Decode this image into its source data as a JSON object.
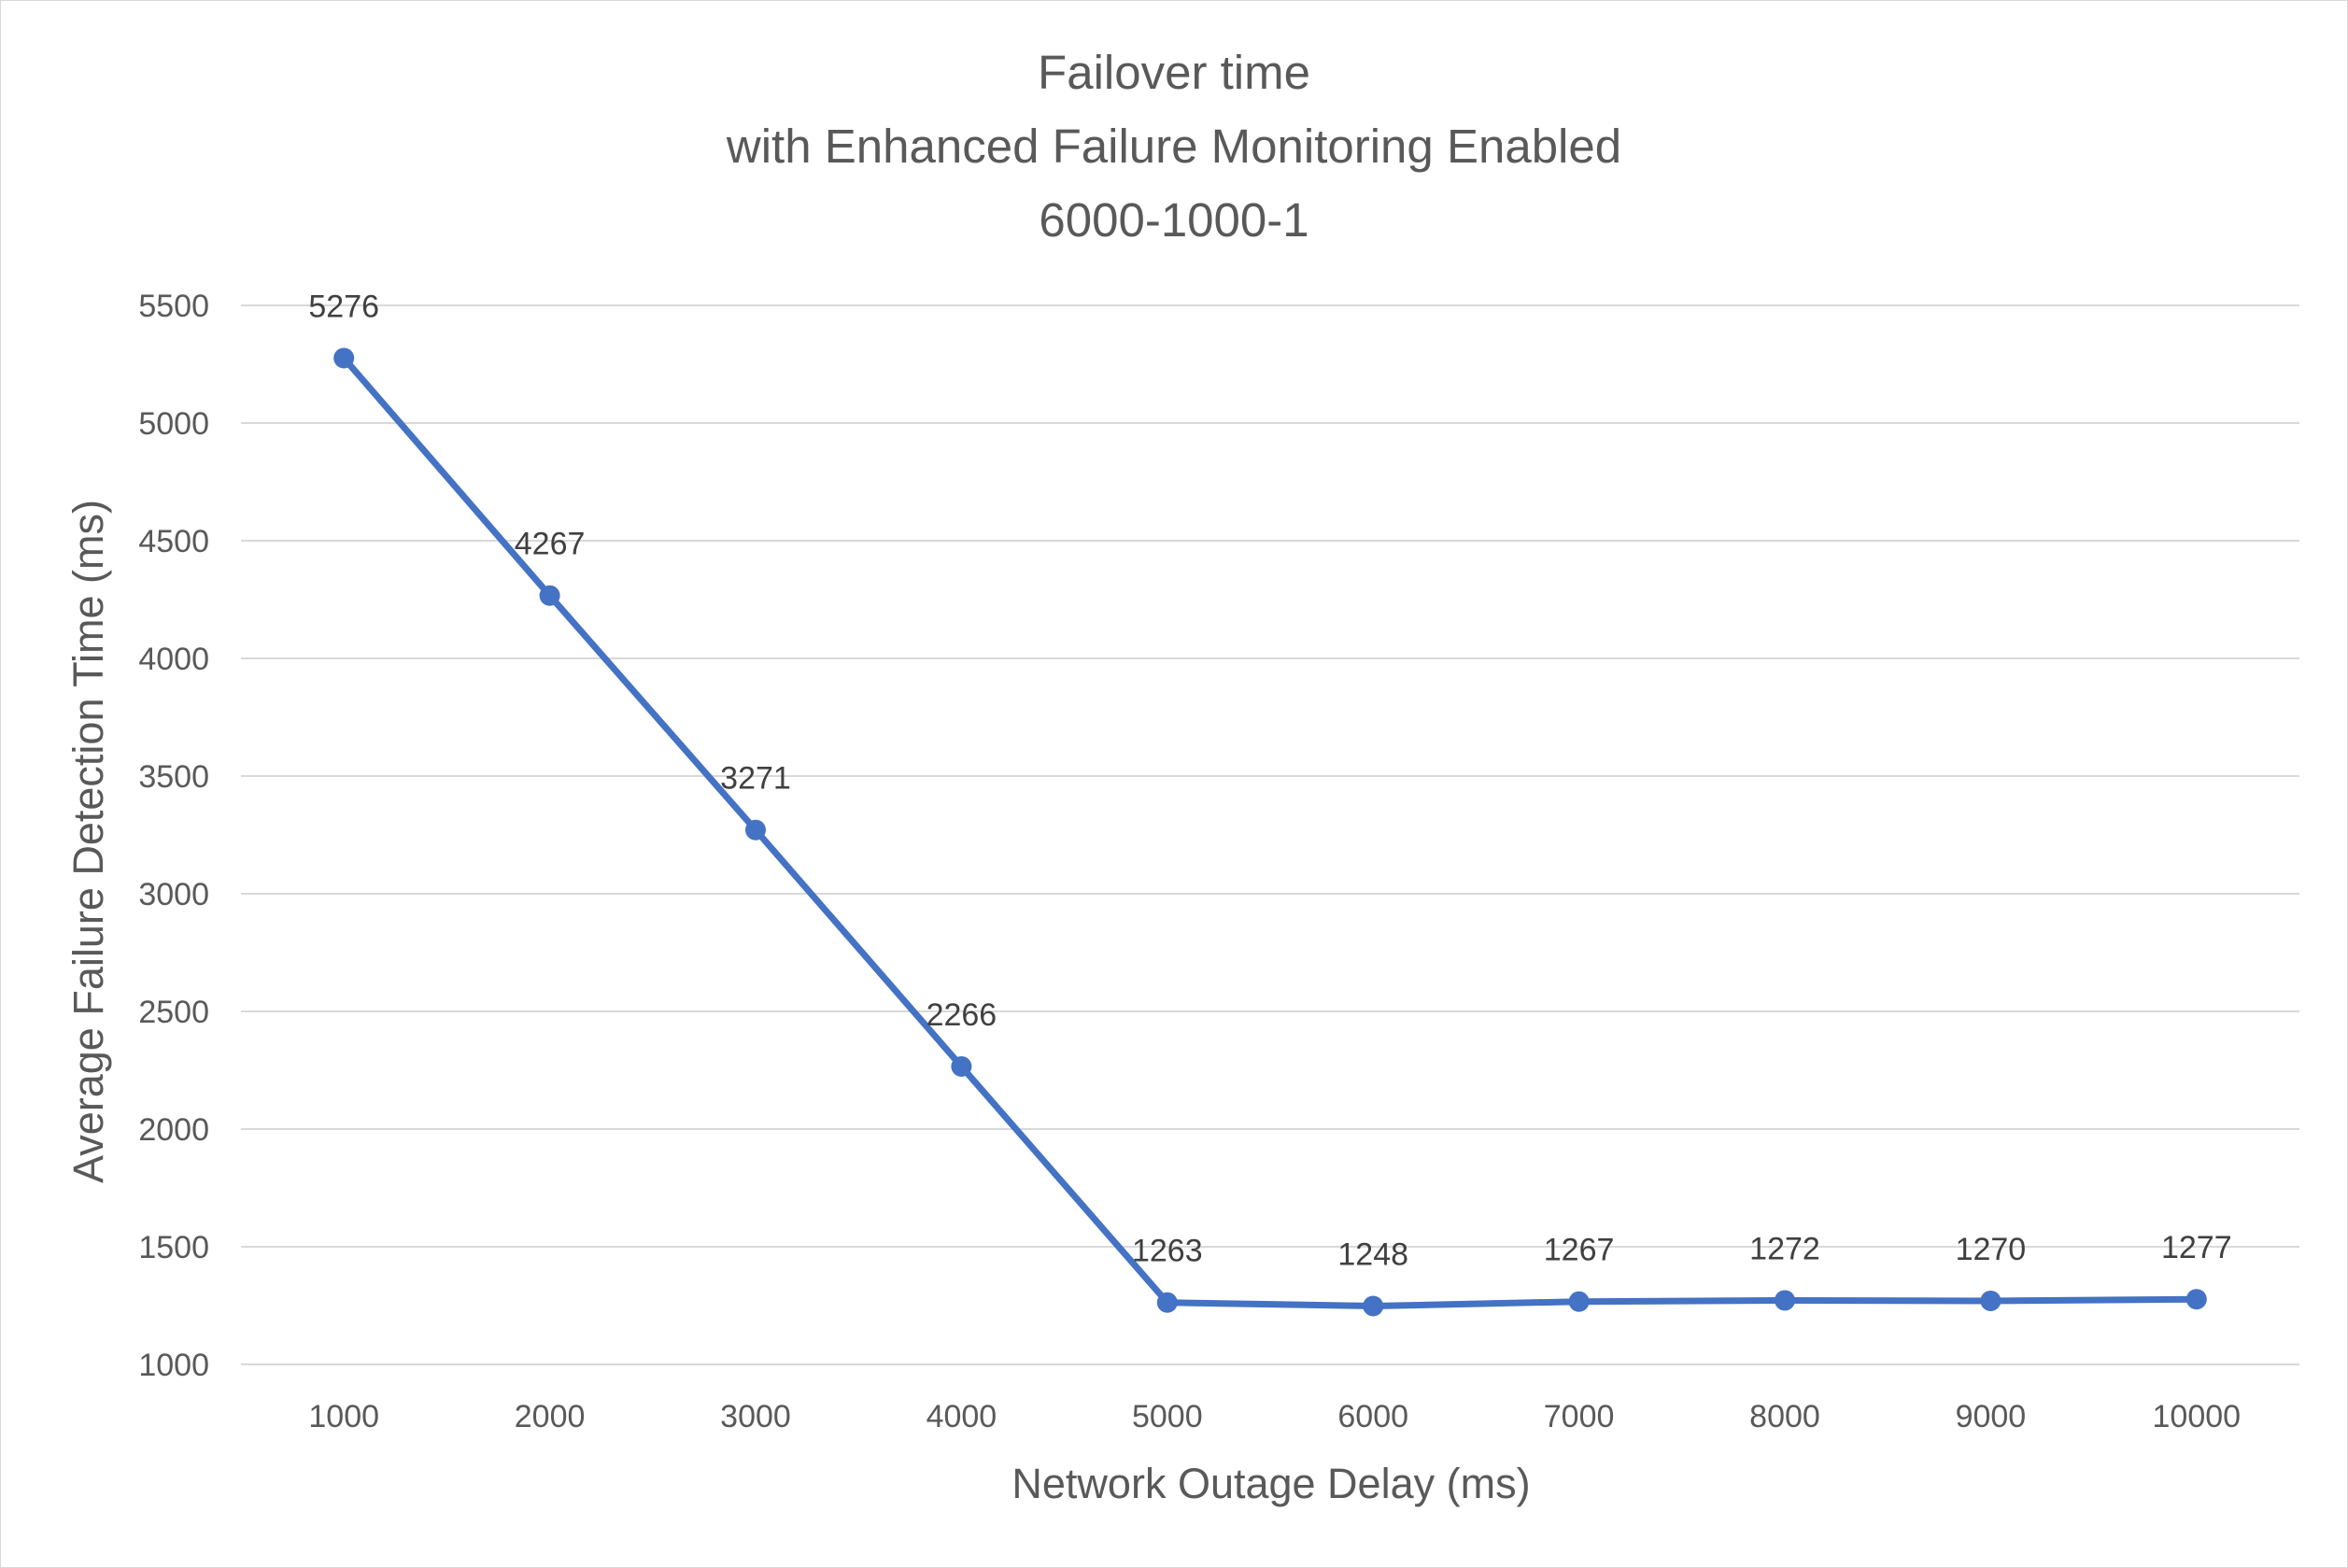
{
  "chart_data": {
    "type": "line",
    "title_lines": [
      "Failover time",
      "with Enhanced Failure Monitoring Enabled",
      "6000-1000-1"
    ],
    "xlabel": "Network Outage Delay (ms)",
    "ylabel": "Average Failure Detection Time (ms)",
    "categories": [
      "1000",
      "2000",
      "3000",
      "4000",
      "5000",
      "6000",
      "7000",
      "8000",
      "9000",
      "10000"
    ],
    "series": [
      {
        "values": [
          5276,
          4267,
          3271,
          2266,
          1263,
          1248,
          1267,
          1272,
          1270,
          1277
        ],
        "color": "#4472c4",
        "data_labels": [
          "5276",
          "4267",
          "3271",
          "2266",
          "1263",
          "1248",
          "1267",
          "1272",
          "1270",
          "1277"
        ]
      }
    ],
    "ylim": [
      1000,
      5500
    ],
    "yticks": [
      "1000",
      "1500",
      "2000",
      "2500",
      "3000",
      "3500",
      "4000",
      "4500",
      "5000",
      "5500"
    ],
    "grid": true,
    "legend": "none"
  }
}
